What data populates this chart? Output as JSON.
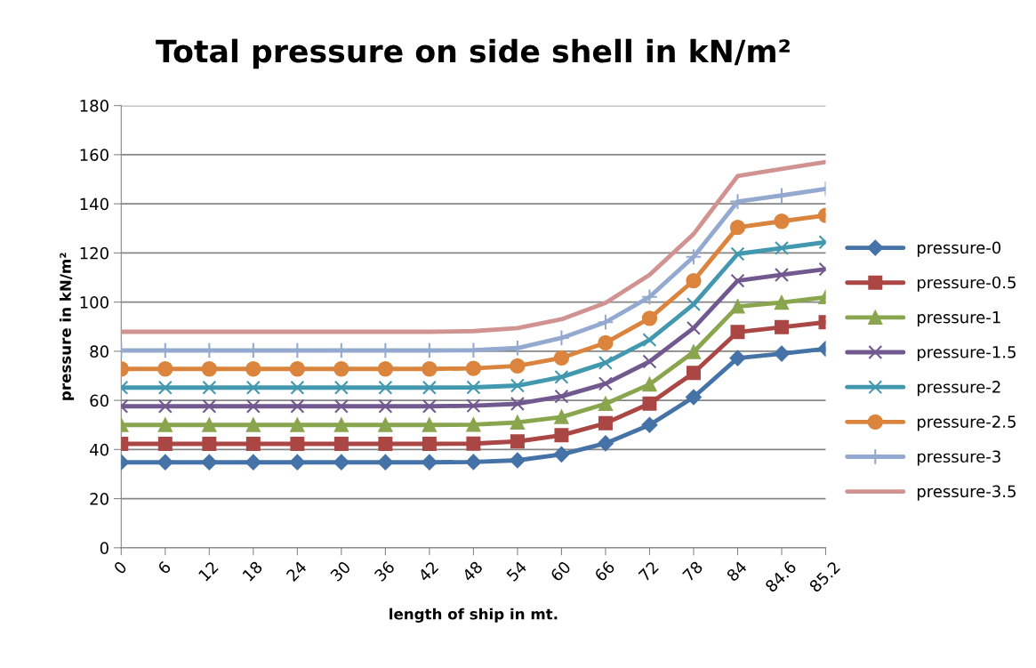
{
  "chart_data": {
    "type": "line",
    "title": "Total pressure on side shell in kN/m²",
    "xlabel": "length of ship in mt.",
    "ylabel": "pressure in kN/m²",
    "categories": [
      "0",
      "6",
      "12",
      "18",
      "24",
      "30",
      "36",
      "42",
      "48",
      "54",
      "60",
      "66",
      "72",
      "78",
      "84",
      "84.6",
      "85.2"
    ],
    "ylim": [
      0,
      180
    ],
    "yticks": [
      0,
      20,
      40,
      60,
      80,
      100,
      120,
      140,
      160,
      180
    ],
    "grid": "y",
    "legend": "right",
    "series": [
      {
        "name": "pressure-0",
        "color": "#4572a7",
        "marker": "diamond",
        "values": [
          34.8,
          34.8,
          34.8,
          34.8,
          34.8,
          34.8,
          34.8,
          34.8,
          34.9,
          35.6,
          38,
          42.5,
          50,
          61.3,
          77.2,
          79,
          81
        ]
      },
      {
        "name": "pressure-0.5",
        "color": "#aa4643",
        "marker": "square",
        "values": [
          42.3,
          42.3,
          42.3,
          42.3,
          42.3,
          42.3,
          42.3,
          42.3,
          42.4,
          43.3,
          45.8,
          50.7,
          58.7,
          71.2,
          87.8,
          89.8,
          91.8
        ]
      },
      {
        "name": "pressure-1",
        "color": "#89a54e",
        "marker": "triangle",
        "values": [
          50,
          50,
          50,
          50,
          50,
          50,
          50,
          50,
          50.1,
          51,
          53.2,
          58.6,
          66.5,
          79.7,
          98.2,
          99.8,
          102
        ]
      },
      {
        "name": "pressure-1.5",
        "color": "#71588f",
        "marker": "cross",
        "values": [
          57.6,
          57.6,
          57.6,
          57.6,
          57.6,
          57.6,
          57.6,
          57.6,
          57.8,
          58.6,
          61.6,
          66.8,
          75.8,
          89.4,
          108.7,
          111.1,
          113.4
        ]
      },
      {
        "name": "pressure-2",
        "color": "#4198af",
        "marker": "cross",
        "values": [
          65.2,
          65.2,
          65.2,
          65.2,
          65.2,
          65.2,
          65.2,
          65.2,
          65.3,
          66,
          69.5,
          75.3,
          84.6,
          99.1,
          119.6,
          122,
          124.4
        ]
      },
      {
        "name": "pressure-2.5",
        "color": "#db843d",
        "marker": "circle",
        "values": [
          72.8,
          72.8,
          72.8,
          72.8,
          72.8,
          72.8,
          72.8,
          72.8,
          73,
          74,
          77.3,
          83.4,
          93.4,
          108.7,
          130.4,
          132.9,
          135.3
        ]
      },
      {
        "name": "pressure-3",
        "color": "#93a9cf",
        "marker": "plus",
        "values": [
          80.3,
          80.3,
          80.3,
          80.3,
          80.3,
          80.3,
          80.3,
          80.3,
          80.4,
          81.3,
          85.4,
          91.8,
          102.1,
          118.4,
          140.9,
          143.4,
          146.1
        ]
      },
      {
        "name": "pressure-3.5",
        "color": "#d19392",
        "marker": "none",
        "values": [
          87.9,
          87.9,
          87.9,
          87.9,
          87.9,
          87.9,
          87.9,
          87.9,
          88.2,
          89.4,
          93,
          99.7,
          111.1,
          127.7,
          151.3,
          154.2,
          157
        ]
      }
    ]
  }
}
